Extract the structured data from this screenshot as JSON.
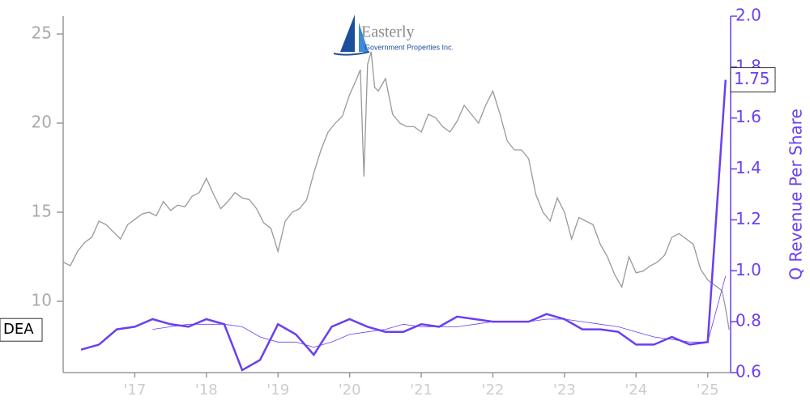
{
  "chart_data": {
    "type": "line",
    "ticker": "DEA",
    "y2label": "Q Revenue Per Share",
    "logo": {
      "name": "Easterly",
      "tagline": "Government Properties Inc."
    },
    "xlim": [
      2016.0,
      2025.32
    ],
    "xticks": [
      {
        "value": 2017,
        "label": "'17"
      },
      {
        "value": 2018,
        "label": "'18"
      },
      {
        "value": 2019,
        "label": "'19"
      },
      {
        "value": 2020,
        "label": "'20"
      },
      {
        "value": 2021,
        "label": "'21"
      },
      {
        "value": 2022,
        "label": "'22"
      },
      {
        "value": 2023,
        "label": "'23"
      },
      {
        "value": 2024,
        "label": "'24"
      },
      {
        "value": 2025,
        "label": "'25"
      }
    ],
    "ylim": [
      6,
      26
    ],
    "yticks": [
      10,
      15,
      20,
      25
    ],
    "y2lim": [
      0.6,
      2.0
    ],
    "y2ticks": [
      0.6,
      0.8,
      {
        "value": 1.0,
        "label": "1.0"
      },
      1.2,
      1.4,
      1.6,
      1.8,
      {
        "value": 2.0,
        "label": "2.0"
      }
    ],
    "price": {
      "color": "#999999",
      "x": [
        2016.0,
        2016.1,
        2016.2,
        2016.3,
        2016.4,
        2016.5,
        2016.6,
        2016.7,
        2016.8,
        2016.9,
        2017.0,
        2017.1,
        2017.2,
        2017.3,
        2017.4,
        2017.5,
        2017.6,
        2017.7,
        2017.8,
        2017.9,
        2018.0,
        2018.1,
        2018.2,
        2018.3,
        2018.4,
        2018.5,
        2018.6,
        2018.7,
        2018.8,
        2018.9,
        2019.0,
        2019.1,
        2019.2,
        2019.3,
        2019.4,
        2019.5,
        2019.6,
        2019.7,
        2019.8,
        2019.9,
        2020.0,
        2020.1,
        2020.15,
        2020.2,
        2020.25,
        2020.3,
        2020.35,
        2020.4,
        2020.5,
        2020.6,
        2020.7,
        2020.8,
        2020.9,
        2021.0,
        2021.1,
        2021.2,
        2021.3,
        2021.4,
        2021.5,
        2021.6,
        2021.7,
        2021.8,
        2021.9,
        2022.0,
        2022.1,
        2022.2,
        2022.3,
        2022.4,
        2022.5,
        2022.6,
        2022.7,
        2022.8,
        2022.9,
        2023.0,
        2023.1,
        2023.2,
        2023.3,
        2023.4,
        2023.5,
        2023.6,
        2023.7,
        2023.8,
        2023.9,
        2024.0,
        2024.1,
        2024.2,
        2024.3,
        2024.4,
        2024.5,
        2024.6,
        2024.7,
        2024.8,
        2024.9,
        2025.0,
        2025.1,
        2025.2,
        2025.25,
        2025.3
      ],
      "values": [
        12.2,
        12.0,
        12.8,
        13.3,
        13.6,
        14.5,
        14.3,
        13.9,
        13.5,
        14.3,
        14.6,
        14.9,
        15.0,
        14.8,
        15.6,
        15.1,
        15.4,
        15.3,
        15.9,
        16.1,
        16.9,
        16.0,
        15.2,
        15.6,
        16.1,
        15.8,
        15.7,
        15.2,
        14.4,
        14.1,
        12.8,
        14.5,
        15.0,
        15.2,
        15.7,
        17.2,
        18.5,
        19.5,
        20.0,
        20.4,
        21.6,
        22.5,
        23.0,
        17.0,
        23.3,
        24.0,
        22.0,
        21.8,
        22.5,
        20.5,
        20.0,
        19.8,
        19.8,
        19.5,
        20.5,
        20.3,
        19.8,
        19.5,
        20.1,
        21.0,
        20.5,
        20.0,
        21.0,
        21.8,
        20.5,
        19.0,
        18.5,
        18.5,
        18.0,
        16.0,
        15.0,
        14.5,
        15.8,
        15.0,
        13.5,
        14.7,
        14.5,
        14.3,
        13.2,
        12.5,
        11.5,
        10.8,
        12.5,
        11.6,
        11.7,
        12.0,
        12.2,
        12.6,
        13.6,
        13.8,
        13.5,
        13.2,
        11.8,
        11.2,
        10.9,
        10.6,
        9.6,
        8.4
      ]
    },
    "x": [
      2016.25,
      2016.5,
      2016.75,
      2017.0,
      2017.25,
      2017.5,
      2017.75,
      2018.0,
      2018.25,
      2018.5,
      2018.75,
      2019.0,
      2019.25,
      2019.5,
      2019.75,
      2020.0,
      2020.25,
      2020.5,
      2020.75,
      2021.0,
      2021.25,
      2021.5,
      2021.75,
      2022.0,
      2022.25,
      2022.5,
      2022.75,
      2023.0,
      2023.25,
      2023.5,
      2023.75,
      2024.0,
      2024.25,
      2024.5,
      2024.75,
      2025.0,
      2025.25
    ],
    "series": [
      {
        "color": "#6a3ff0",
        "axis": "y2",
        "values": [
          0.69,
          0.71,
          0.77,
          0.78,
          0.81,
          0.79,
          0.78,
          0.81,
          0.79,
          0.61,
          0.65,
          0.79,
          0.75,
          0.67,
          0.78,
          0.81,
          0.78,
          0.76,
          0.76,
          0.79,
          0.78,
          0.82,
          0.81,
          0.8,
          0.8,
          0.8,
          0.83,
          0.81,
          0.77,
          0.77,
          0.76,
          0.71,
          0.71,
          0.74,
          0.71,
          0.72,
          1.75
        ]
      },
      {
        "color": "#6a3ff0",
        "axis": "y2",
        "values": [
          null,
          null,
          null,
          null,
          0.77,
          0.78,
          0.79,
          0.79,
          0.79,
          0.78,
          0.74,
          0.72,
          0.72,
          0.7,
          0.72,
          0.75,
          0.76,
          0.77,
          0.79,
          0.78,
          0.78,
          0.78,
          0.79,
          0.8,
          0.8,
          0.8,
          0.81,
          0.81,
          0.8,
          0.79,
          0.78,
          0.76,
          0.74,
          0.73,
          0.72,
          0.72,
          0.98
        ]
      }
    ]
  }
}
